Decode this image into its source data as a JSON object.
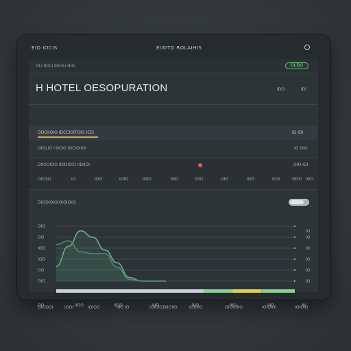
{
  "topbar": {
    "left_label": "EIO IOCIS",
    "center_label": "ElIDTO ROLAIHIS"
  },
  "panel": {
    "header_label": "OLI IIOLI IEIOLI HIO",
    "status_pill": "OLDO",
    "title": "H HOTEL OESOPURATION",
    "title_meta_a": "IDO",
    "title_meta_b": "IDI"
  },
  "section_a": {
    "label": "ODOIIOIO IDCCIOITOIO ICEI",
    "right": "ID IDI"
  },
  "section_b": {
    "label": "OIOLIO I'OCIO IOCIOIIOI",
    "right": "IO OIO"
  },
  "section_c": {
    "label": "DIIOOIOO IDIDIOCI IIDIIOI",
    "right": "OIO IDI"
  },
  "axis_ticks": [
    "OIOIIO",
    "IO",
    "IOO",
    "IOIO",
    "IOID",
    "IOD",
    "IDO",
    "OIO",
    "IOO",
    "IOO",
    "ODO",
    "IOO"
  ],
  "chart": {
    "label": "DIOOIOIOIOIOIOIO:",
    "toggle_state": "on"
  },
  "chart_data": {
    "type": "line",
    "y_ticks": [
      "OIO",
      "OO",
      "IOD",
      "IOD",
      "OO",
      "OIO"
    ],
    "x_ticks": [
      "OO",
      "IIOO",
      "IIOO",
      "IIIO",
      "IIIO",
      "IIIO",
      "IIIO",
      "AI"
    ],
    "right_ticks": [
      "IO",
      "IO",
      "IO",
      "IO",
      "IO",
      "IO"
    ],
    "series": [
      {
        "values": [
          16,
          38,
          55,
          48,
          34,
          20,
          4,
          0,
          0,
          0
        ]
      },
      {
        "values": [
          40,
          44,
          32,
          30,
          30,
          15,
          2,
          0,
          0,
          0
        ]
      }
    ],
    "range_bar": {
      "segments": [
        0.62,
        0.12,
        0.12,
        0.14
      ]
    }
  },
  "footer": {
    "items": [
      "OIOOOI",
      "IOOI",
      "IOIOO",
      "IIIO IO",
      "IOIOIODIIOIIO",
      "IOIOIO",
      "OIOIOIIO",
      "IOIOIOI",
      "IOIOIO"
    ]
  }
}
